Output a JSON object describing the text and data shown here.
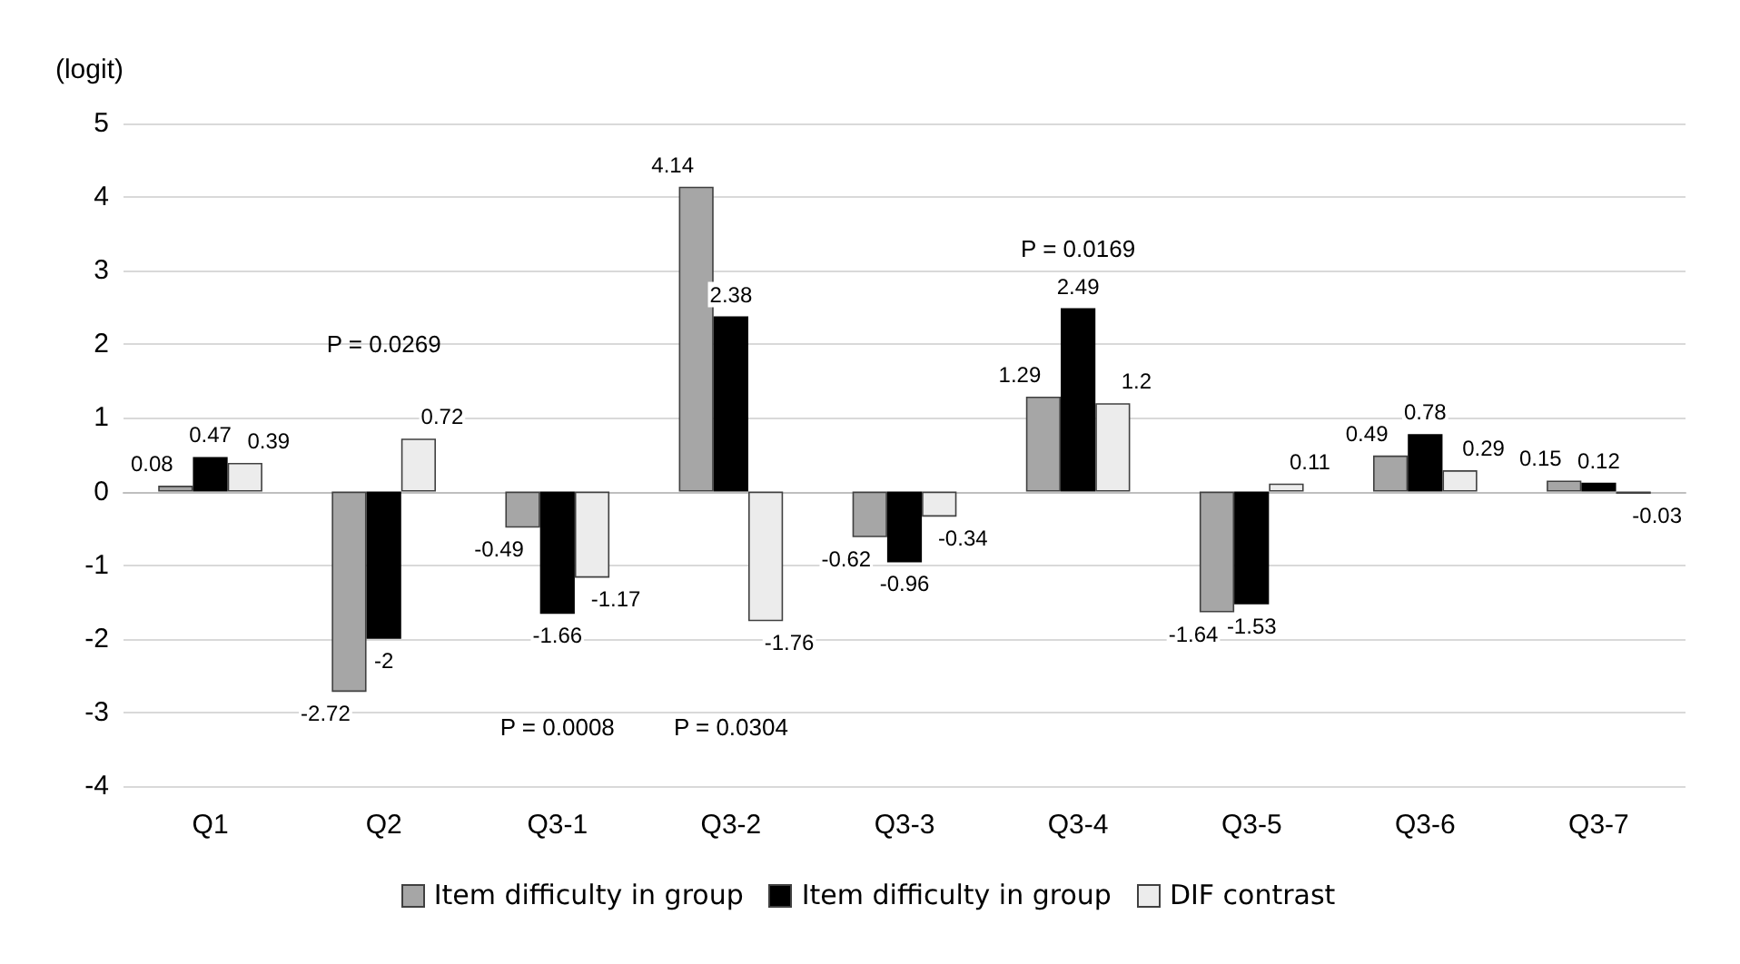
{
  "chart_data": {
    "type": "bar",
    "ylabel": "(logit)",
    "categories": [
      "Q1",
      "Q2",
      "Q3-1",
      "Q3-2",
      "Q3-3",
      "Q3-4",
      "Q3-5",
      "Q3-6",
      "Q3-7"
    ],
    "series": [
      {
        "name": "Item difficulty in group",
        "color": "#a6a6a6",
        "values": [
          0.08,
          -2.72,
          -0.49,
          4.14,
          -0.62,
          1.29,
          -1.64,
          0.49,
          0.15
        ]
      },
      {
        "name": "Item difficulty in group",
        "color": "#000000",
        "values": [
          0.47,
          -2,
          -1.66,
          2.38,
          -0.96,
          2.49,
          -1.53,
          0.78,
          0.12
        ]
      },
      {
        "name": "DIF contrast",
        "color": "#ececec",
        "values": [
          0.39,
          0.72,
          -1.17,
          -1.76,
          -0.34,
          1.2,
          0.11,
          0.29,
          -0.03
        ]
      }
    ],
    "ylim": [
      -4,
      5
    ],
    "yticks": [
      -4,
      -3,
      -2,
      -1,
      0,
      1,
      2,
      3,
      4,
      5
    ],
    "grid": "y",
    "legend": "bottom",
    "data_labels": true,
    "annotations": [
      "P = 0.0269",
      "P = 0.0008",
      "P = 0.0304",
      "P = 0.0169"
    ]
  }
}
